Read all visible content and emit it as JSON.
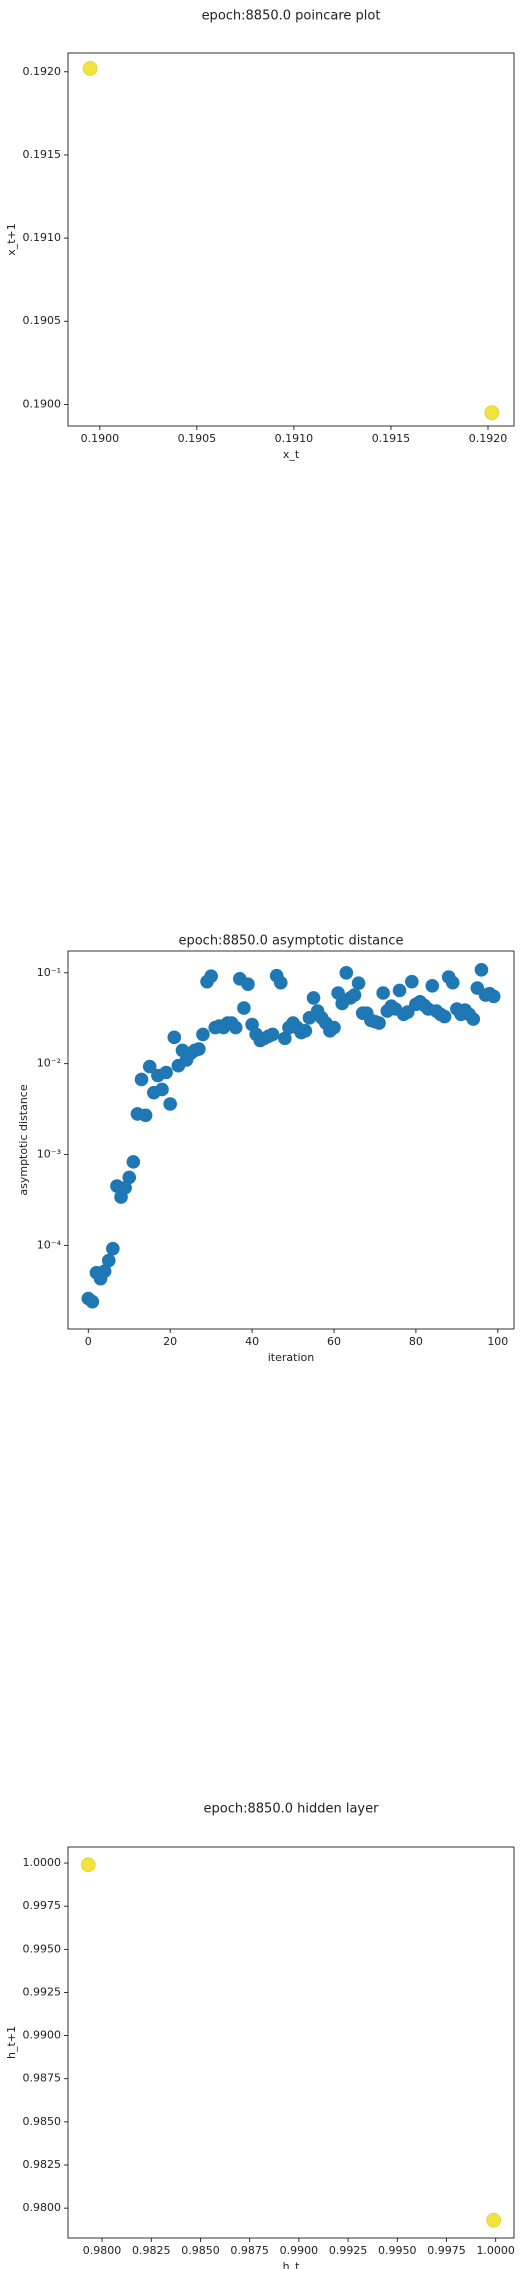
{
  "chart_data": [
    {
      "type": "scatter",
      "title": "epoch:8850.0 poincare plot",
      "x_label": "x_t",
      "y_label": "x_t+1",
      "x": [
        0.18995,
        0.19202
      ],
      "values": [
        0.19202,
        0.18995
      ],
      "color": "#f2e33a",
      "edge_color": "#d8c62a",
      "xlim": [
        0.189836,
        0.192134
      ],
      "ylim": [
        0.18987,
        0.192113
      ],
      "xticks": [
        {
          "value": 0.19,
          "label": "0.1900"
        },
        {
          "value": 0.1905,
          "label": "0.1905"
        },
        {
          "value": 0.191,
          "label": "0.1910"
        },
        {
          "value": 0.1915,
          "label": "0.1915"
        },
        {
          "value": 0.192,
          "label": "0.1920"
        }
      ],
      "yticks": [
        {
          "value": 0.19,
          "label": "0.1900"
        },
        {
          "value": 0.1905,
          "label": "0.1905"
        },
        {
          "value": 0.191,
          "label": "0.1910"
        },
        {
          "value": 0.1915,
          "label": "0.1915"
        },
        {
          "value": 0.192,
          "label": "0.1920"
        }
      ],
      "log_y": false
    },
    {
      "type": "scatter",
      "title": "epoch:8850.0 asymptotic distance",
      "x_label": "iteration",
      "y_label": "asymptotic distance",
      "x": [
        0,
        1,
        2,
        3,
        4,
        5,
        6,
        7,
        8,
        9,
        10,
        11,
        12,
        13,
        14,
        15,
        16,
        17,
        18,
        19,
        20,
        21,
        22,
        23,
        24,
        25,
        26,
        27,
        28,
        29,
        30,
        31,
        32,
        33,
        34,
        35,
        36,
        37,
        38,
        39,
        40,
        41,
        42,
        43,
        44,
        45,
        46,
        47,
        48,
        49,
        50,
        51,
        52,
        53,
        54,
        55,
        56,
        57,
        58,
        59,
        60,
        61,
        62,
        63,
        64,
        65,
        66,
        67,
        68,
        69,
        70,
        71,
        72,
        73,
        74,
        75,
        76,
        77,
        78,
        79,
        80,
        81,
        82,
        83,
        84,
        85,
        86,
        87,
        88,
        89,
        90,
        91,
        92,
        93,
        94,
        95,
        96,
        97,
        98,
        99
      ],
      "values": [
        2.6e-05,
        2.4e-05,
        5e-05,
        4.3e-05,
        5.2e-05,
        6.8e-05,
        9.2e-05,
        0.00045,
        0.00034,
        0.00043,
        0.00056,
        0.00083,
        0.0028,
        0.0067,
        0.0027,
        0.0093,
        0.0048,
        0.0074,
        0.0052,
        0.008,
        0.0036,
        0.0195,
        0.0095,
        0.014,
        0.011,
        0.013,
        0.014,
        0.0145,
        0.021,
        0.08,
        0.092,
        0.025,
        0.026,
        0.025,
        0.028,
        0.028,
        0.025,
        0.086,
        0.041,
        0.075,
        0.027,
        0.021,
        0.018,
        0.019,
        0.02,
        0.021,
        0.093,
        0.078,
        0.019,
        0.025,
        0.028,
        0.025,
        0.022,
        0.023,
        0.032,
        0.053,
        0.038,
        0.032,
        0.028,
        0.023,
        0.025,
        0.06,
        0.046,
        0.1,
        0.053,
        0.057,
        0.077,
        0.036,
        0.036,
        0.03,
        0.029,
        0.028,
        0.06,
        0.038,
        0.043,
        0.04,
        0.064,
        0.035,
        0.037,
        0.08,
        0.045,
        0.048,
        0.044,
        0.04,
        0.072,
        0.038,
        0.035,
        0.033,
        0.09,
        0.078,
        0.04,
        0.035,
        0.039,
        0.035,
        0.031,
        0.068,
        0.108,
        0.057,
        0.059,
        0.055
      ],
      "color": "#1f77b4",
      "edge_color": "#1f77b4",
      "xlim": [
        -4.95,
        103.95
      ],
      "ylim": [
        1.2e-05,
        0.174
      ],
      "xticks": [
        0,
        20,
        40,
        60,
        80,
        100
      ],
      "yticks": [
        {
          "value": 0.0001,
          "label": "10⁻⁴"
        },
        {
          "value": 0.001,
          "label": "10⁻³"
        },
        {
          "value": 0.01,
          "label": "10⁻²"
        },
        {
          "value": 0.1,
          "label": "10⁻¹"
        }
      ],
      "log_y": true
    },
    {
      "type": "scatter",
      "title": "epoch:8850.0 hidden layer",
      "x_label": "h_t",
      "y_label": "h_t+1",
      "x": [
        0.9793,
        0.9999
      ],
      "values": [
        0.9999,
        0.9793
      ],
      "color": "#f2e33a",
      "edge_color": "#d8c62a",
      "xlim": [
        0.97827,
        1.00093
      ],
      "ylim": [
        0.97827,
        1.00093
      ],
      "xticks": [
        {
          "value": 0.98,
          "label": "0.9800"
        },
        {
          "value": 0.9825,
          "label": "0.9825"
        },
        {
          "value": 0.985,
          "label": "0.9850"
        },
        {
          "value": 0.9875,
          "label": "0.9875"
        },
        {
          "value": 0.99,
          "label": "0.9900"
        },
        {
          "value": 0.9925,
          "label": "0.9925"
        },
        {
          "value": 0.995,
          "label": "0.9950"
        },
        {
          "value": 0.9975,
          "label": "0.9975"
        },
        {
          "value": 1,
          "label": "1.0000"
        }
      ],
      "yticks": [
        {
          "value": 0.98,
          "label": "0.9800"
        },
        {
          "value": 0.9825,
          "label": "0.9825"
        },
        {
          "value": 0.985,
          "label": "0.9850"
        },
        {
          "value": 0.9875,
          "label": "0.9875"
        },
        {
          "value": 0.99,
          "label": "0.9900"
        },
        {
          "value": 0.9925,
          "label": "0.9925"
        },
        {
          "value": 0.995,
          "label": "0.9950"
        },
        {
          "value": 0.9975,
          "label": "0.9975"
        },
        {
          "value": 1,
          "label": "1.0000"
        }
      ],
      "log_y": false
    }
  ]
}
